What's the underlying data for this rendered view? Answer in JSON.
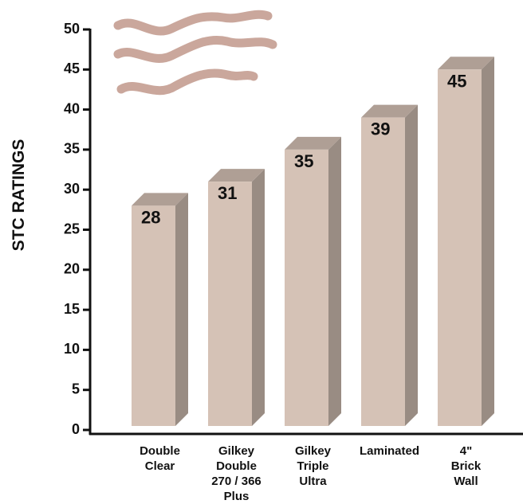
{
  "chart_data": {
    "type": "bar3d",
    "y_label": "STC RATINGS",
    "categories": [
      "Double\nClear",
      "Gilkey\nDouble\n270 / 366\nPlus",
      "Gilkey\nTriple\nUltra",
      "Laminated",
      "4\"\nBrick\nWall"
    ],
    "values": [
      28,
      31,
      35,
      39,
      45
    ],
    "color": "#d5c2b6",
    "ylim": [
      0,
      50
    ],
    "yticks": [
      0,
      5,
      10,
      15,
      20,
      25,
      30,
      35,
      40,
      45,
      50
    ]
  }
}
